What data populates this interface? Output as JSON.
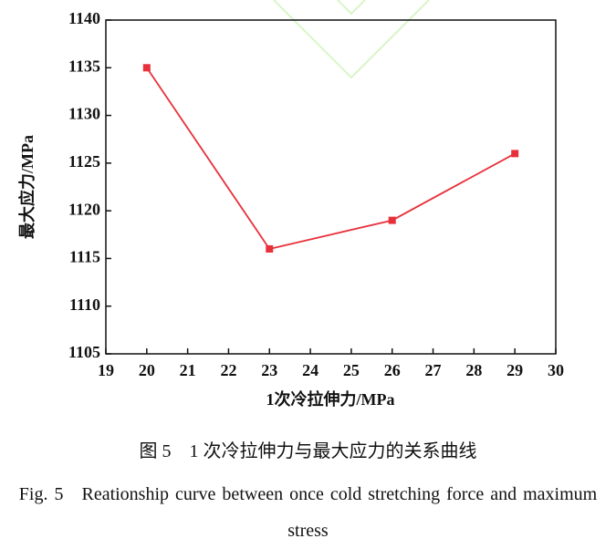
{
  "chart_data": {
    "type": "line",
    "xlabel": "1次冷拉伸力/MPa",
    "ylabel": "最大应力/MPa",
    "x": [
      20,
      23,
      26,
      29
    ],
    "values": [
      1135,
      1116,
      1119,
      1126
    ],
    "color": "#e8303a",
    "xlim": [
      19,
      30
    ],
    "xticks": [
      19,
      20,
      21,
      22,
      23,
      24,
      25,
      26,
      27,
      28,
      29,
      30
    ],
    "ylim": [
      1105,
      1140
    ],
    "yticks": [
      1105,
      1110,
      1115,
      1120,
      1125,
      1130,
      1135,
      1140
    ],
    "grid": false
  },
  "caption": {
    "cn": "图 5　1 次冷拉伸力与最大应力的关系曲线",
    "en": "Fig. 5　Reationship curve between once cold stretching force and maximum stress"
  }
}
